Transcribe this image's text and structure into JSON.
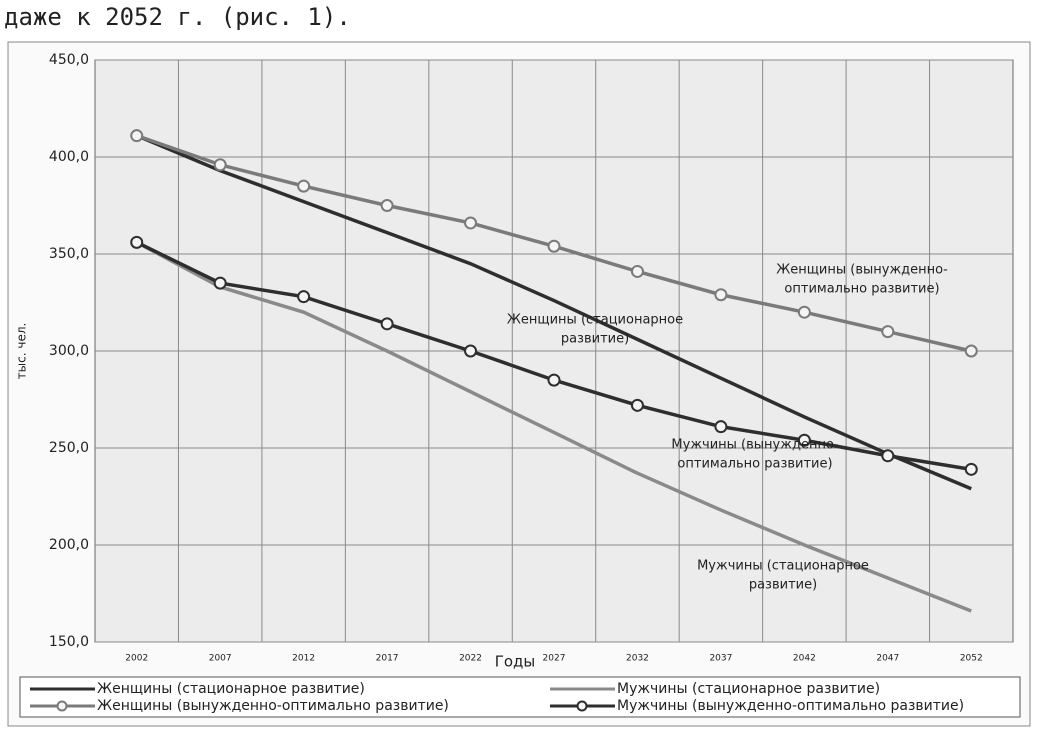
{
  "header": {
    "text": "даже к 2052 г. (рис. 1)."
  },
  "chart_data": {
    "type": "line",
    "y_label": "тыс. чел.",
    "x_label": "Годы",
    "categories": [
      "2002",
      "2007",
      "2012",
      "2017",
      "2022",
      "2027",
      "2032",
      "2037",
      "2042",
      "2047",
      "2052"
    ],
    "ylim": [
      150,
      450
    ],
    "yticks": [
      {
        "value": 150,
        "label": "150,0"
      },
      {
        "value": 200,
        "label": "200,0"
      },
      {
        "value": 250,
        "label": "250,0"
      },
      {
        "value": 300,
        "label": "300,0"
      },
      {
        "value": 350,
        "label": "350,0"
      },
      {
        "value": 400,
        "label": "400,0"
      },
      {
        "value": 450,
        "label": "450,0"
      }
    ],
    "grid": true,
    "series": [
      {
        "name": "Женщины (стационарное развитие)",
        "color": "#2e2e2e",
        "marker": false,
        "values": [
          411,
          393,
          377,
          361,
          345,
          326,
          306,
          286,
          266,
          247,
          229
        ]
      },
      {
        "name": "Мужчины (стационарное развитие)",
        "color": "#8a8a8a",
        "marker": false,
        "values": [
          356,
          333,
          320,
          300,
          279,
          258,
          237,
          218,
          200,
          183,
          166
        ]
      },
      {
        "name": "Женщины (вынужденно-оптимально развитие)",
        "color": "#7a7a7a",
        "marker": true,
        "values": [
          411,
          396,
          385,
          375,
          366,
          354,
          341,
          329,
          320,
          310,
          300
        ]
      },
      {
        "name": "Мужчины (вынужденно-оптимально развитие)",
        "color": "#2e2e2e",
        "marker": true,
        "values": [
          356,
          335,
          328,
          314,
          300,
          285,
          272,
          261,
          254,
          246,
          239
        ]
      }
    ],
    "annotations": [
      {
        "lines": [
          "Женщины (вынужденно-",
          "оптимально развитие)"
        ]
      },
      {
        "lines": [
          "Женщины (стационарное",
          "развитие)"
        ]
      },
      {
        "lines": [
          "Мужчины (вынужденно-",
          "оптимально развитие)"
        ]
      },
      {
        "lines": [
          "Мужчины (стационарное",
          "развитие)"
        ]
      }
    ]
  }
}
